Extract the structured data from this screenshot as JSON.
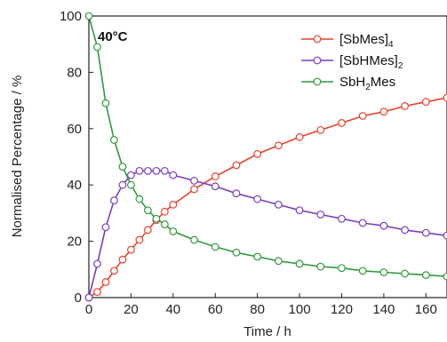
{
  "chart_data": {
    "type": "line",
    "xlabel": "Time / h",
    "ylabel": "Normalised Percentage / %",
    "annotation": "40°C",
    "xlim": [
      0,
      170
    ],
    "ylim": [
      0,
      100
    ],
    "xticks": [
      0,
      20,
      40,
      60,
      80,
      100,
      120,
      140,
      160
    ],
    "yticks": [
      0,
      20,
      40,
      60,
      80,
      100
    ],
    "grid": false,
    "legend_position": "top-right",
    "series": [
      {
        "name_parts": [
          {
            "text": "[SbMes]"
          },
          {
            "text": "4",
            "sub": true
          }
        ],
        "color": "#e8412b",
        "x": [
          0,
          4,
          8,
          12,
          16,
          20,
          24,
          28,
          32,
          36,
          40,
          50,
          60,
          70,
          80,
          90,
          100,
          110,
          120,
          130,
          140,
          150,
          160,
          170
        ],
        "y": [
          0,
          2,
          5.5,
          9.5,
          13.5,
          17,
          20.5,
          24,
          27.5,
          30.5,
          33,
          38.5,
          43,
          47,
          51,
          54,
          57,
          59.5,
          62,
          64.5,
          66,
          68,
          69.5,
          71
        ]
      },
      {
        "name_parts": [
          {
            "text": "[SbHMes]"
          },
          {
            "text": "2",
            "sub": true
          }
        ],
        "color": "#7b3fbf",
        "x": [
          0,
          4,
          8,
          12,
          16,
          20,
          24,
          28,
          32,
          36,
          40,
          50,
          60,
          70,
          80,
          90,
          100,
          110,
          120,
          130,
          140,
          150,
          160,
          170
        ],
        "y": [
          0,
          12,
          25,
          34.5,
          40,
          43.5,
          45,
          45,
          45,
          45,
          43.5,
          41.5,
          39.5,
          37,
          35,
          33,
          31,
          29.5,
          28,
          26.5,
          25.5,
          24,
          23,
          22
        ]
      },
      {
        "name_parts": [
          {
            "text": "SbH"
          },
          {
            "text": "2",
            "sub": true
          },
          {
            "text": "Mes"
          }
        ],
        "color": "#2f9a3e",
        "x": [
          0,
          4,
          8,
          12,
          16,
          20,
          24,
          28,
          32,
          36,
          40,
          50,
          60,
          70,
          80,
          90,
          100,
          110,
          120,
          130,
          140,
          150,
          160,
          170
        ],
        "y": [
          100,
          89,
          69,
          56,
          46.5,
          40,
          35,
          31,
          28,
          26,
          23.5,
          20.5,
          18,
          16,
          14.5,
          13,
          12,
          11,
          10.5,
          9.5,
          9,
          8.5,
          8,
          7.5
        ]
      }
    ]
  }
}
